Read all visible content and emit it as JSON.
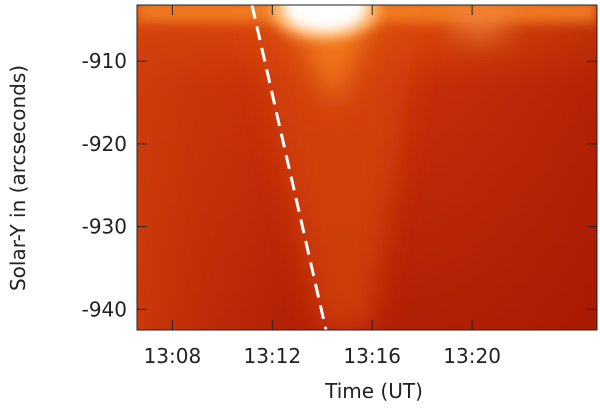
{
  "chart_data": {
    "type": "heatmap",
    "x_label": "Time (UT)",
    "y_label": "Solar-Y in (arcseconds)",
    "xlim": [
      "13:06:35",
      "13:25:00"
    ],
    "xticks": [
      "13:08",
      "13:12",
      "13:16",
      "13:20"
    ],
    "ylim": [
      -942.5,
      -903.2
    ],
    "yticks": [
      -940,
      -930,
      -920,
      -910
    ]
  }
}
